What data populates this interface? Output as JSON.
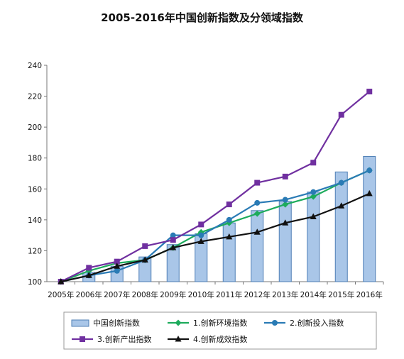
{
  "chart_data": {
    "type": "bar+line",
    "title": "2005-2016年中国创新指数及分领域指数",
    "xlabel": "",
    "ylabel": "",
    "ylim": [
      100,
      240
    ],
    "yticks": [
      100,
      120,
      140,
      160,
      180,
      200,
      220,
      240
    ],
    "grid": false,
    "legend_position": "bottom",
    "categories": [
      "2005年",
      "2006年",
      "2007年",
      "2008年",
      "2009年",
      "2010年",
      "2011年",
      "2012年",
      "2013年",
      "2014年",
      "2015年",
      "2016年"
    ],
    "bar_series": {
      "name": "中国创新指数",
      "color": "#a9c6e8",
      "border": "#4f7fb5",
      "values": [
        100,
        106,
        110,
        116,
        124,
        131,
        138,
        146,
        152,
        158,
        171,
        181
      ]
    },
    "series": [
      {
        "name": "1.创新环境指数",
        "color": "#1dab5c",
        "marker": "diamond",
        "values": [
          100,
          107,
          112,
          114,
          122,
          132,
          138,
          144,
          150,
          155,
          164,
          172
        ]
      },
      {
        "name": "2.创新投入指数",
        "color": "#2a7bb5",
        "marker": "circle",
        "values": [
          100,
          104,
          107,
          114,
          130,
          130,
          140,
          151,
          153,
          158,
          164,
          172
        ]
      },
      {
        "name": "3.创新产出指数",
        "color": "#7030a0",
        "marker": "square",
        "values": [
          100,
          109,
          113,
          123,
          127,
          137,
          150,
          164,
          168,
          177,
          208,
          223
        ]
      },
      {
        "name": "4.创新成效指数",
        "color": "#111111",
        "marker": "triangle",
        "values": [
          100,
          104,
          110,
          114,
          122,
          126,
          129,
          132,
          138,
          142,
          149,
          157
        ]
      }
    ]
  }
}
